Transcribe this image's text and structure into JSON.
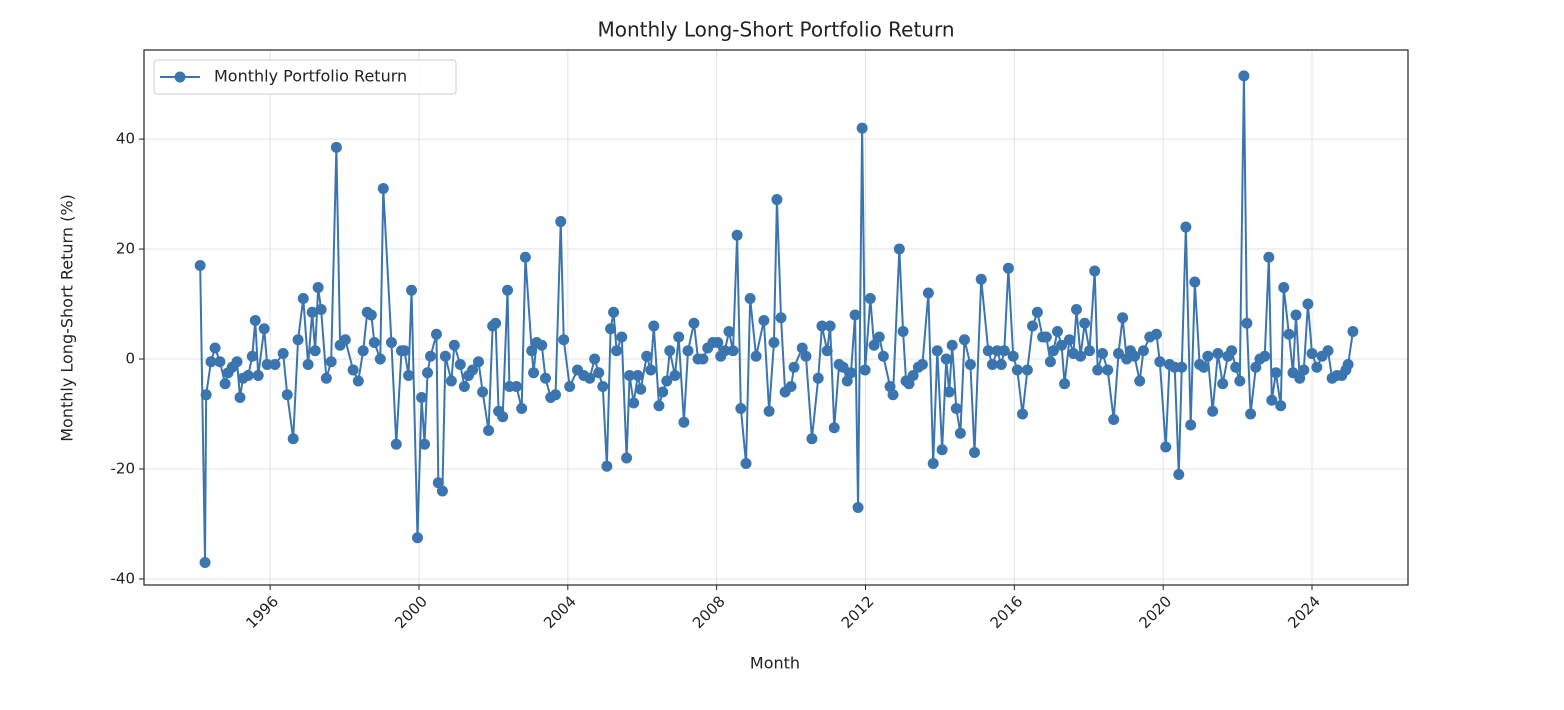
{
  "chart_data": {
    "type": "line",
    "title": "Monthly Long-Short Portfolio Return",
    "x_label": "Month",
    "y_label": "Monthly Long-Short Return (%)",
    "x": [
      1994.12,
      1994.25,
      1994.28,
      1994.41,
      1994.52,
      1994.65,
      1994.79,
      1994.87,
      1994.98,
      1995.11,
      1995.19,
      1995.27,
      1995.41,
      1995.52,
      1995.6,
      1995.68,
      1995.84,
      1995.92,
      1996.13,
      1996.35,
      1996.46,
      1996.62,
      1996.75,
      1996.89,
      1997.02,
      1997.13,
      1997.21,
      1997.29,
      1997.37,
      1997.51,
      1997.64,
      1997.78,
      1997.88,
      1998.02,
      1998.23,
      1998.37,
      1998.5,
      1998.61,
      1998.72,
      1998.8,
      1998.96,
      1999.04,
      1999.26,
      1999.39,
      1999.53,
      1999.61,
      1999.72,
      1999.8,
      1999.96,
      2000.07,
      2000.15,
      2000.23,
      2000.31,
      2000.47,
      2000.52,
      2000.63,
      2000.71,
      2000.87,
      2000.95,
      2001.11,
      2001.22,
      2001.33,
      2001.44,
      2001.6,
      2001.71,
      2001.87,
      2001.98,
      2002.06,
      2002.14,
      2002.25,
      2002.38,
      2002.43,
      2002.62,
      2002.76,
      2002.86,
      2003.03,
      2003.08,
      2003.16,
      2003.3,
      2003.4,
      2003.54,
      2003.67,
      2003.81,
      2003.89,
      2004.05,
      2004.26,
      2004.43,
      2004.59,
      2004.72,
      2004.83,
      2004.94,
      2005.05,
      2005.15,
      2005.23,
      2005.31,
      2005.45,
      2005.58,
      2005.66,
      2005.77,
      2005.88,
      2005.96,
      2006.12,
      2006.23,
      2006.31,
      2006.45,
      2006.55,
      2006.66,
      2006.74,
      2006.88,
      2006.98,
      2007.12,
      2007.23,
      2007.39,
      2007.5,
      2007.63,
      2007.76,
      2007.9,
      2008.03,
      2008.11,
      2008.22,
      2008.33,
      2008.44,
      2008.55,
      2008.65,
      2008.79,
      2008.9,
      2009.06,
      2009.27,
      2009.41,
      2009.54,
      2009.62,
      2009.73,
      2009.84,
      2010.0,
      2010.08,
      2010.3,
      2010.4,
      2010.56,
      2010.73,
      2010.83,
      2010.97,
      2011.05,
      2011.16,
      2011.29,
      2011.4,
      2011.51,
      2011.61,
      2011.72,
      2011.8,
      2011.91,
      2011.99,
      2012.13,
      2012.23,
      2012.37,
      2012.48,
      2012.66,
      2012.74,
      2012.91,
      2013.01,
      2013.09,
      2013.17,
      2013.28,
      2013.42,
      2013.53,
      2013.69,
      2013.82,
      2013.93,
      2014.06,
      2014.17,
      2014.25,
      2014.33,
      2014.44,
      2014.55,
      2014.66,
      2014.82,
      2014.93,
      2015.11,
      2015.3,
      2015.41,
      2015.54,
      2015.65,
      2015.73,
      2015.84,
      2015.97,
      2016.08,
      2016.22,
      2016.35,
      2016.49,
      2016.62,
      2016.76,
      2016.86,
      2016.97,
      2017.05,
      2017.16,
      2017.27,
      2017.35,
      2017.48,
      2017.59,
      2017.67,
      2017.78,
      2017.89,
      2018.02,
      2018.16,
      2018.24,
      2018.37,
      2018.51,
      2018.67,
      2018.8,
      2018.91,
      2019.02,
      2019.12,
      2019.23,
      2019.37,
      2019.47,
      2019.64,
      2019.82,
      2019.91,
      2020.07,
      2020.17,
      2020.31,
      2020.42,
      2020.5,
      2020.61,
      2020.74,
      2020.85,
      2020.98,
      2021.09,
      2021.2,
      2021.33,
      2021.47,
      2021.6,
      2021.74,
      2021.84,
      2021.95,
      2022.06,
      2022.17,
      2022.25,
      2022.35,
      2022.49,
      2022.6,
      2022.73,
      2022.84,
      2022.92,
      2023.03,
      2023.16,
      2023.24,
      2023.38,
      2023.49,
      2023.57,
      2023.67,
      2023.78,
      2023.89,
      2024.0,
      2024.13,
      2024.27,
      2024.43,
      2024.54,
      2024.67,
      2024.8,
      2024.91,
      2024.97,
      2025.1
    ],
    "series": [
      {
        "name": "Monthly Portfolio Return",
        "color": "#3b75af",
        "values": [
          17,
          -37,
          -6.5,
          -0.5,
          2,
          -0.5,
          -4.5,
          -2.5,
          -1.5,
          -0.5,
          -7,
          -3.5,
          -3,
          0.5,
          7,
          -3,
          5.5,
          -1,
          -1,
          1,
          -6.5,
          -14.5,
          3.5,
          11,
          -1,
          8.5,
          1.5,
          13,
          9,
          -3.5,
          -0.5,
          38.5,
          2.5,
          3.5,
          -2,
          -4,
          1.5,
          8.5,
          8,
          3,
          0,
          31,
          3,
          -15.5,
          1.5,
          1.5,
          -3,
          12.5,
          -32.5,
          -7,
          -15.5,
          -2.5,
          0.5,
          4.5,
          -22.5,
          -24,
          0.5,
          -4,
          2.5,
          -1,
          -5,
          -3,
          -2,
          -0.5,
          -6,
          -13,
          6,
          6.5,
          -9.5,
          -10.5,
          12.5,
          -5,
          -5,
          -9,
          18.5,
          1.5,
          -2.5,
          3,
          2.5,
          -3.5,
          -7,
          -6.5,
          25,
          3.5,
          -5,
          -2,
          -3,
          -3.5,
          0,
          -2.5,
          -5,
          -19.5,
          5.5,
          8.5,
          1.5,
          4,
          -18,
          -3,
          -8,
          -3,
          -5.5,
          0.5,
          -2,
          6,
          -8.5,
          -6,
          -4,
          1.5,
          -3,
          4,
          -11.5,
          1.5,
          6.5,
          0,
          0,
          2,
          3,
          3,
          0.5,
          1.5,
          5,
          1.5,
          22.5,
          -9,
          -19,
          11,
          0.5,
          7,
          -9.5,
          3,
          29,
          7.5,
          -6,
          -5,
          -1.5,
          2,
          0.5,
          -14.5,
          -3.5,
          6,
          1.5,
          6,
          -12.5,
          -1,
          -1.5,
          -4,
          -2.5,
          8,
          -27,
          42,
          -2,
          11,
          2.5,
          4,
          0.5,
          -5,
          -6.5,
          20,
          5,
          -4,
          -4.5,
          -3,
          -1.5,
          -1,
          12,
          -19,
          1.5,
          -16.5,
          0,
          -6,
          2.5,
          -9,
          -13.5,
          3.5,
          -1,
          -17,
          14.5,
          1.5,
          -1,
          1.5,
          -1,
          1.5,
          16.5,
          0.5,
          -2,
          -10,
          -2,
          6,
          8.5,
          4,
          4,
          -0.5,
          1.5,
          5,
          2.5,
          -4.5,
          3.5,
          1,
          9,
          0.5,
          6.5,
          1.5,
          16,
          -2,
          1,
          -2,
          -11,
          1,
          7.5,
          0,
          1.5,
          0.5,
          -4,
          1.5,
          4,
          4.5,
          -0.5,
          -16,
          -1,
          -1.5,
          -21,
          -1.5,
          24,
          -12,
          14,
          -1,
          -1.5,
          0.5,
          -9.5,
          1,
          -4.5,
          0.5,
          1.5,
          -1.5,
          -4,
          51.5,
          6.5,
          -10,
          -1.5,
          0,
          0.5,
          18.5,
          -7.5,
          -2.5,
          -8.5,
          13,
          4.5,
          -2.5,
          8,
          -3.5,
          -2,
          10,
          1,
          -1.5,
          0.5,
          1.5,
          -3.5,
          -3,
          -3,
          -2,
          -1,
          5
        ]
      }
    ],
    "xlim": [
      1992.61,
      2026.58
    ],
    "xticks": [
      1996,
      2000,
      2004,
      2008,
      2012,
      2016,
      2020,
      2024
    ],
    "ylim": [
      -41.1,
      56.2
    ],
    "yticks": [
      -40,
      -20,
      0,
      20,
      40
    ],
    "grid": true,
    "legend": "upper left"
  }
}
